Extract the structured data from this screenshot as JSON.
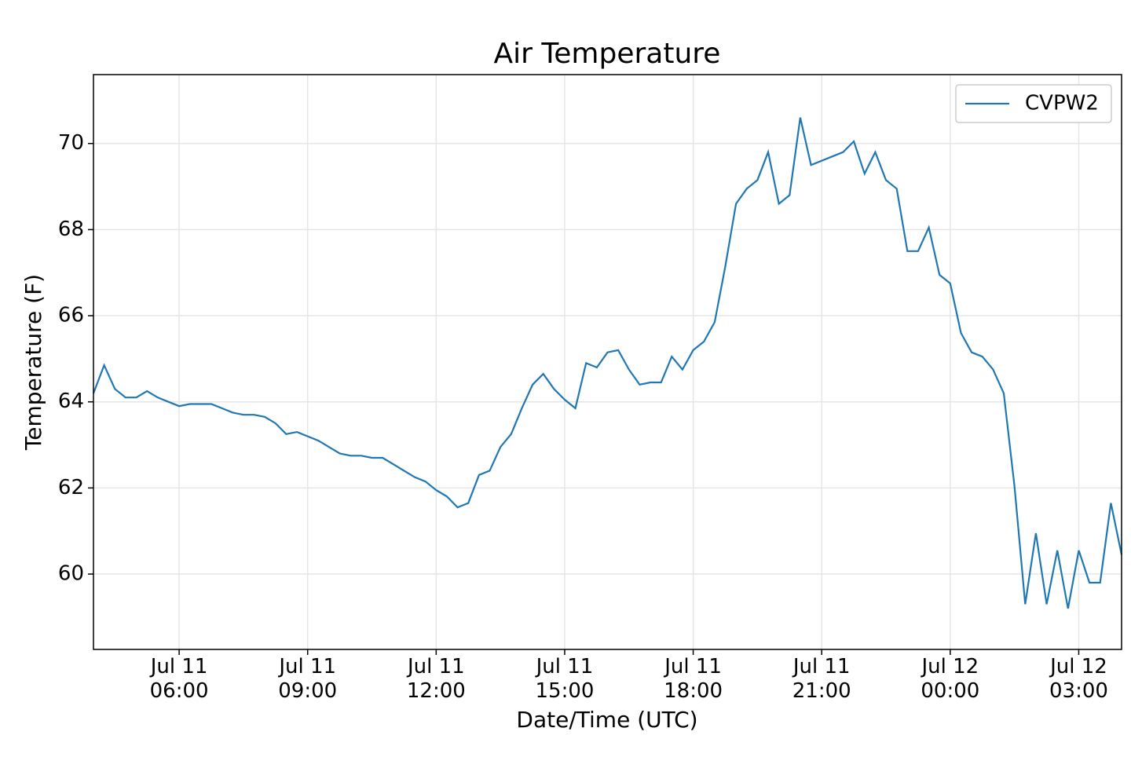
{
  "chart_data": {
    "type": "line",
    "title": "Air Temperature",
    "xlabel": "Date/Time (UTC)",
    "ylabel": "Temperature (F)",
    "x": [
      "07-11 04:00",
      "07-11 04:15",
      "07-11 04:30",
      "07-11 04:45",
      "07-11 05:00",
      "07-11 05:15",
      "07-11 05:30",
      "07-11 05:45",
      "07-11 06:00",
      "07-11 06:15",
      "07-11 06:30",
      "07-11 06:45",
      "07-11 07:00",
      "07-11 07:15",
      "07-11 07:30",
      "07-11 07:45",
      "07-11 08:00",
      "07-11 08:15",
      "07-11 08:30",
      "07-11 08:45",
      "07-11 09:00",
      "07-11 09:15",
      "07-11 09:30",
      "07-11 09:45",
      "07-11 10:00",
      "07-11 10:15",
      "07-11 10:30",
      "07-11 10:45",
      "07-11 11:00",
      "07-11 11:15",
      "07-11 11:30",
      "07-11 11:45",
      "07-11 12:00",
      "07-11 12:15",
      "07-11 12:30",
      "07-11 12:45",
      "07-11 13:00",
      "07-11 13:15",
      "07-11 13:30",
      "07-11 13:45",
      "07-11 14:00",
      "07-11 14:15",
      "07-11 14:30",
      "07-11 14:45",
      "07-11 15:00",
      "07-11 15:15",
      "07-11 15:30",
      "07-11 15:45",
      "07-11 16:00",
      "07-11 16:15",
      "07-11 16:30",
      "07-11 16:45",
      "07-11 17:00",
      "07-11 17:15",
      "07-11 17:30",
      "07-11 17:45",
      "07-11 18:00",
      "07-11 18:15",
      "07-11 18:30",
      "07-11 18:45",
      "07-11 19:00",
      "07-11 19:15",
      "07-11 19:30",
      "07-11 19:45",
      "07-11 20:00",
      "07-11 20:15",
      "07-11 20:30",
      "07-11 20:45",
      "07-11 21:00",
      "07-11 21:15",
      "07-11 21:30",
      "07-11 21:45",
      "07-11 22:00",
      "07-11 22:15",
      "07-11 22:30",
      "07-11 22:45",
      "07-11 23:00",
      "07-11 23:15",
      "07-11 23:30",
      "07-11 23:45",
      "07-12 00:00",
      "07-12 00:15",
      "07-12 00:30",
      "07-12 00:45",
      "07-12 01:00",
      "07-12 01:15",
      "07-12 01:30",
      "07-12 01:45",
      "07-12 02:00",
      "07-12 02:15",
      "07-12 02:30",
      "07-12 02:45",
      "07-12 03:00",
      "07-12 03:15",
      "07-12 03:30",
      "07-12 03:45",
      "07-12 04:00"
    ],
    "series": [
      {
        "name": "CVPW2",
        "color": "#1f77b4",
        "values": [
          64.2,
          64.85,
          64.3,
          64.1,
          64.1,
          64.25,
          64.1,
          64.0,
          63.9,
          63.95,
          63.95,
          63.95,
          63.85,
          63.75,
          63.7,
          63.7,
          63.65,
          63.5,
          63.25,
          63.3,
          63.2,
          63.1,
          62.95,
          62.8,
          62.75,
          62.75,
          62.7,
          62.7,
          62.55,
          62.4,
          62.25,
          62.15,
          61.95,
          61.8,
          61.55,
          61.65,
          62.3,
          62.4,
          62.95,
          63.25,
          63.85,
          64.4,
          64.65,
          64.3,
          64.05,
          63.85,
          64.9,
          64.8,
          65.15,
          65.2,
          64.75,
          64.4,
          64.45,
          64.45,
          65.05,
          64.75,
          65.2,
          65.4,
          65.85,
          67.15,
          68.6,
          68.95,
          69.15,
          69.8,
          68.6,
          68.8,
          70.6,
          69.5,
          69.6,
          69.7,
          69.8,
          70.05,
          69.3,
          69.8,
          69.15,
          68.95,
          67.5,
          67.5,
          68.05,
          66.95,
          66.75,
          65.6,
          65.15,
          65.05,
          64.75,
          64.2,
          62.05,
          59.3,
          60.95,
          59.3,
          60.55,
          59.2,
          60.55,
          59.8,
          59.8,
          61.65,
          60.45
        ]
      }
    ],
    "xlim": [
      "07-11 04:00",
      "07-12 04:00"
    ],
    "xticks": [
      {
        "value": "07-11 06:00",
        "label": "Jul 11\n06:00"
      },
      {
        "value": "07-11 09:00",
        "label": "Jul 11\n09:00"
      },
      {
        "value": "07-11 12:00",
        "label": "Jul 11\n12:00"
      },
      {
        "value": "07-11 15:00",
        "label": "Jul 11\n15:00"
      },
      {
        "value": "07-11 18:00",
        "label": "Jul 11\n18:00"
      },
      {
        "value": "07-11 21:00",
        "label": "Jul 11\n21:00"
      },
      {
        "value": "07-12 00:00",
        "label": "Jul 12\n00:00"
      },
      {
        "value": "07-12 03:00",
        "label": "Jul 12\n03:00"
      }
    ],
    "ylim": [
      58.25,
      71.6
    ],
    "yticks": [
      60,
      62,
      64,
      66,
      68,
      70
    ],
    "grid": true,
    "legend": "upper right"
  }
}
